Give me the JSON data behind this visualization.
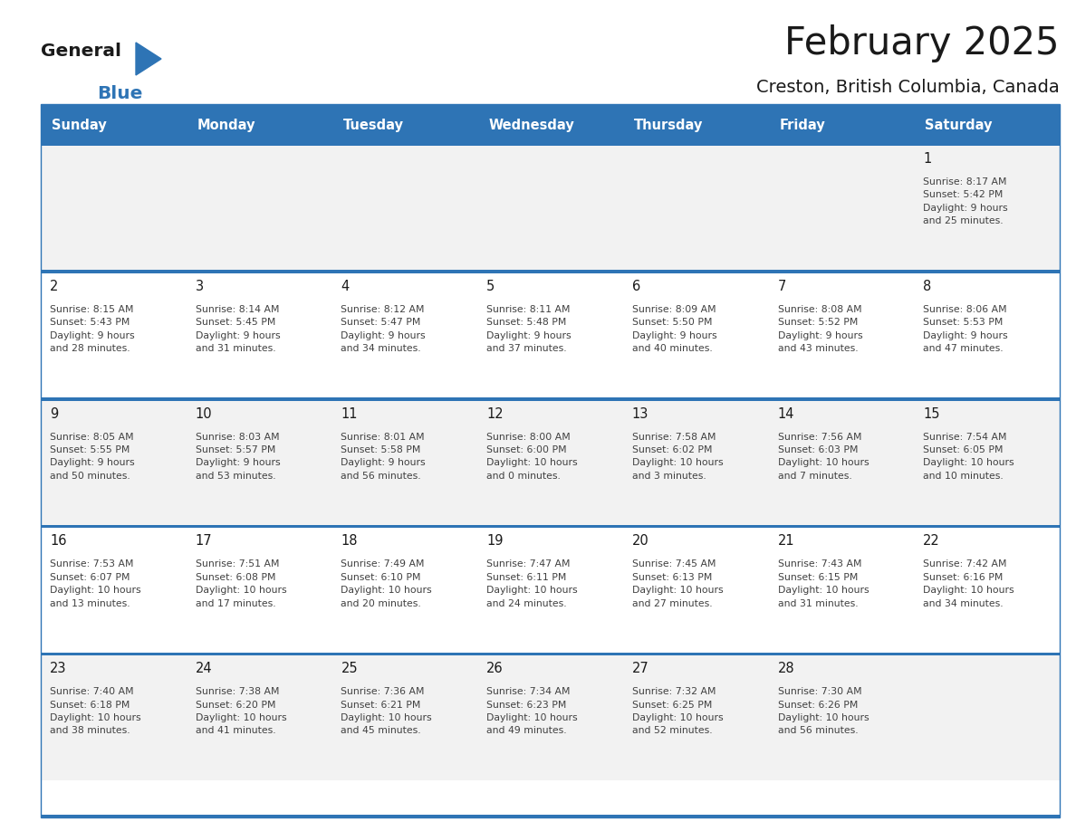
{
  "title": "February 2025",
  "subtitle": "Creston, British Columbia, Canada",
  "header_bg": "#2E74B5",
  "header_text_color": "#FFFFFF",
  "days_of_week": [
    "Sunday",
    "Monday",
    "Tuesday",
    "Wednesday",
    "Thursday",
    "Friday",
    "Saturday"
  ],
  "bg_color": "#FFFFFF",
  "cell_bg_even": "#F2F2F2",
  "cell_bg_odd": "#FFFFFF",
  "row_line_color": "#2E74B5",
  "text_color": "#404040",
  "day_number_color": "#1a1a1a",
  "logo_triangle_color": "#2E74B5",
  "calendar_data": [
    [
      {
        "day": null,
        "info": null
      },
      {
        "day": null,
        "info": null
      },
      {
        "day": null,
        "info": null
      },
      {
        "day": null,
        "info": null
      },
      {
        "day": null,
        "info": null
      },
      {
        "day": null,
        "info": null
      },
      {
        "day": 1,
        "info": "Sunrise: 8:17 AM\nSunset: 5:42 PM\nDaylight: 9 hours\nand 25 minutes."
      }
    ],
    [
      {
        "day": 2,
        "info": "Sunrise: 8:15 AM\nSunset: 5:43 PM\nDaylight: 9 hours\nand 28 minutes."
      },
      {
        "day": 3,
        "info": "Sunrise: 8:14 AM\nSunset: 5:45 PM\nDaylight: 9 hours\nand 31 minutes."
      },
      {
        "day": 4,
        "info": "Sunrise: 8:12 AM\nSunset: 5:47 PM\nDaylight: 9 hours\nand 34 minutes."
      },
      {
        "day": 5,
        "info": "Sunrise: 8:11 AM\nSunset: 5:48 PM\nDaylight: 9 hours\nand 37 minutes."
      },
      {
        "day": 6,
        "info": "Sunrise: 8:09 AM\nSunset: 5:50 PM\nDaylight: 9 hours\nand 40 minutes."
      },
      {
        "day": 7,
        "info": "Sunrise: 8:08 AM\nSunset: 5:52 PM\nDaylight: 9 hours\nand 43 minutes."
      },
      {
        "day": 8,
        "info": "Sunrise: 8:06 AM\nSunset: 5:53 PM\nDaylight: 9 hours\nand 47 minutes."
      }
    ],
    [
      {
        "day": 9,
        "info": "Sunrise: 8:05 AM\nSunset: 5:55 PM\nDaylight: 9 hours\nand 50 minutes."
      },
      {
        "day": 10,
        "info": "Sunrise: 8:03 AM\nSunset: 5:57 PM\nDaylight: 9 hours\nand 53 minutes."
      },
      {
        "day": 11,
        "info": "Sunrise: 8:01 AM\nSunset: 5:58 PM\nDaylight: 9 hours\nand 56 minutes."
      },
      {
        "day": 12,
        "info": "Sunrise: 8:00 AM\nSunset: 6:00 PM\nDaylight: 10 hours\nand 0 minutes."
      },
      {
        "day": 13,
        "info": "Sunrise: 7:58 AM\nSunset: 6:02 PM\nDaylight: 10 hours\nand 3 minutes."
      },
      {
        "day": 14,
        "info": "Sunrise: 7:56 AM\nSunset: 6:03 PM\nDaylight: 10 hours\nand 7 minutes."
      },
      {
        "day": 15,
        "info": "Sunrise: 7:54 AM\nSunset: 6:05 PM\nDaylight: 10 hours\nand 10 minutes."
      }
    ],
    [
      {
        "day": 16,
        "info": "Sunrise: 7:53 AM\nSunset: 6:07 PM\nDaylight: 10 hours\nand 13 minutes."
      },
      {
        "day": 17,
        "info": "Sunrise: 7:51 AM\nSunset: 6:08 PM\nDaylight: 10 hours\nand 17 minutes."
      },
      {
        "day": 18,
        "info": "Sunrise: 7:49 AM\nSunset: 6:10 PM\nDaylight: 10 hours\nand 20 minutes."
      },
      {
        "day": 19,
        "info": "Sunrise: 7:47 AM\nSunset: 6:11 PM\nDaylight: 10 hours\nand 24 minutes."
      },
      {
        "day": 20,
        "info": "Sunrise: 7:45 AM\nSunset: 6:13 PM\nDaylight: 10 hours\nand 27 minutes."
      },
      {
        "day": 21,
        "info": "Sunrise: 7:43 AM\nSunset: 6:15 PM\nDaylight: 10 hours\nand 31 minutes."
      },
      {
        "day": 22,
        "info": "Sunrise: 7:42 AM\nSunset: 6:16 PM\nDaylight: 10 hours\nand 34 minutes."
      }
    ],
    [
      {
        "day": 23,
        "info": "Sunrise: 7:40 AM\nSunset: 6:18 PM\nDaylight: 10 hours\nand 38 minutes."
      },
      {
        "day": 24,
        "info": "Sunrise: 7:38 AM\nSunset: 6:20 PM\nDaylight: 10 hours\nand 41 minutes."
      },
      {
        "day": 25,
        "info": "Sunrise: 7:36 AM\nSunset: 6:21 PM\nDaylight: 10 hours\nand 45 minutes."
      },
      {
        "day": 26,
        "info": "Sunrise: 7:34 AM\nSunset: 6:23 PM\nDaylight: 10 hours\nand 49 minutes."
      },
      {
        "day": 27,
        "info": "Sunrise: 7:32 AM\nSunset: 6:25 PM\nDaylight: 10 hours\nand 52 minutes."
      },
      {
        "day": 28,
        "info": "Sunrise: 7:30 AM\nSunset: 6:26 PM\nDaylight: 10 hours\nand 56 minutes."
      },
      {
        "day": null,
        "info": null
      }
    ]
  ]
}
